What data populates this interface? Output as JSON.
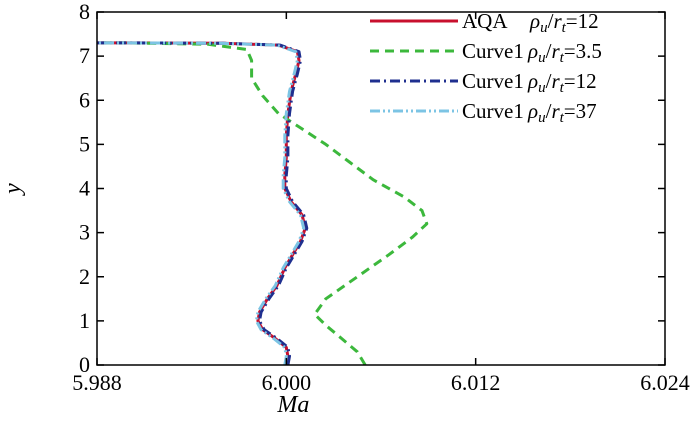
{
  "chart_data": {
    "type": "line",
    "title": "",
    "xlabel": "Ma",
    "ylabel": "y",
    "xlim": [
      5.988,
      6.024
    ],
    "ylim": [
      0,
      8
    ],
    "xticks": [
      5.988,
      6.0,
      6.012,
      6.024
    ],
    "xtick_labels": [
      "5.988",
      "6.000",
      "6.012",
      "6.024"
    ],
    "yticks": [
      0,
      1,
      2,
      3,
      4,
      5,
      6,
      7,
      8
    ],
    "ytick_labels": [
      "0",
      "1",
      "2",
      "3",
      "4",
      "5",
      "6",
      "7",
      "8"
    ],
    "grid": false,
    "legend_position": "top-right",
    "series": [
      {
        "name": "AQA",
        "ratio_label": "=12",
        "color": "#c8102e",
        "dash": "solid",
        "x": [
          6.0,
          6.0001,
          6.0,
          5.9993,
          5.9985,
          5.9982,
          5.9983,
          5.9988,
          5.9994,
          5.9999,
          6.0004,
          6.0009,
          6.0012,
          6.001,
          6.0003,
          5.9999,
          5.9999,
          6.0,
          6.0,
          6.0001,
          6.0003,
          6.0006,
          6.0008,
          6.0007,
          5.9995,
          5.996,
          5.99,
          5.988
        ],
        "y": [
          0.0,
          0.2,
          0.4,
          0.6,
          0.8,
          1.0,
          1.2,
          1.5,
          1.8,
          2.2,
          2.5,
          2.8,
          3.1,
          3.4,
          3.7,
          4.0,
          4.3,
          4.7,
          5.2,
          5.7,
          6.2,
          6.6,
          6.9,
          7.1,
          7.25,
          7.29,
          7.3,
          7.3
        ]
      },
      {
        "name": "Curve1",
        "ratio_label": "=3.5",
        "color": "#3cb83c",
        "dash": "dashed",
        "x": [
          6.005,
          6.0045,
          6.0035,
          6.0025,
          6.0018,
          6.0025,
          6.0045,
          6.0065,
          6.008,
          6.0089,
          6.0086,
          6.0075,
          6.0055,
          6.004,
          6.0025,
          6.001,
          5.9995,
          5.9985,
          5.9978,
          5.9978,
          5.9975,
          5.995,
          5.99,
          5.988
        ],
        "y": [
          0.0,
          0.3,
          0.6,
          0.9,
          1.15,
          1.5,
          2.0,
          2.5,
          2.9,
          3.2,
          3.5,
          3.8,
          4.2,
          4.6,
          5.0,
          5.35,
          5.7,
          6.1,
          6.5,
          6.9,
          7.15,
          7.27,
          7.3,
          7.3
        ]
      },
      {
        "name": "Curve1",
        "ratio_label": "=12",
        "color": "#1f2f8f",
        "dash": "dashdot",
        "x": [
          6.0001,
          6.0002,
          6.0001,
          5.9994,
          5.9986,
          5.9983,
          5.9984,
          5.9989,
          5.9995,
          6.0,
          6.0005,
          6.001,
          6.0013,
          6.0011,
          6.0004,
          6.0,
          6.0,
          6.0001,
          6.0001,
          6.0002,
          6.0004,
          6.0007,
          6.0009,
          6.0008,
          5.9996,
          5.996,
          5.99,
          5.988
        ],
        "y": [
          0.0,
          0.2,
          0.4,
          0.6,
          0.8,
          1.0,
          1.2,
          1.5,
          1.8,
          2.2,
          2.5,
          2.8,
          3.1,
          3.4,
          3.7,
          4.0,
          4.3,
          4.7,
          5.2,
          5.7,
          6.2,
          6.6,
          6.9,
          7.1,
          7.25,
          7.29,
          7.3,
          7.3
        ]
      },
      {
        "name": "Curve1",
        "ratio_label": "=37",
        "color": "#7cc4e4",
        "dash": "dashdotdot",
        "x": [
          5.9999,
          6.0,
          5.9999,
          5.9992,
          5.9984,
          5.9981,
          5.9982,
          5.9987,
          5.9993,
          5.9998,
          6.0003,
          6.0008,
          6.0011,
          6.0009,
          6.0002,
          5.9998,
          5.9998,
          5.9999,
          5.9999,
          6.0,
          6.0002,
          6.0005,
          6.0007,
          6.0006,
          5.9994,
          5.9958,
          5.99,
          5.988
        ],
        "y": [
          0.0,
          0.2,
          0.4,
          0.6,
          0.8,
          1.0,
          1.2,
          1.5,
          1.8,
          2.2,
          2.5,
          2.8,
          3.1,
          3.4,
          3.7,
          4.0,
          4.3,
          4.7,
          5.2,
          5.7,
          6.2,
          6.6,
          6.9,
          7.1,
          7.25,
          7.29,
          7.3,
          7.3
        ]
      }
    ],
    "legend_ratio": {
      "rho": "ρ",
      "u": "u",
      "slash": "/",
      "r": "r",
      "t": "t"
    }
  }
}
